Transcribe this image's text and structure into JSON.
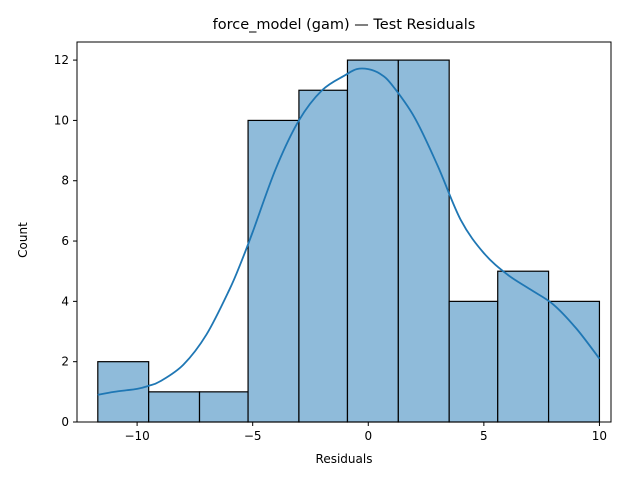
{
  "chart_data": {
    "type": "histogram",
    "title": "force_model (gam) — Test Residuals",
    "xlabel": "Residuals",
    "ylabel": "Count",
    "xlim": [
      -12.6,
      10.5
    ],
    "ylim": [
      0,
      12.6
    ],
    "xticks": [
      -10,
      -5,
      0,
      5,
      10
    ],
    "xtick_labels": [
      "−10",
      "−5",
      "0",
      "5",
      "10"
    ],
    "yticks": [
      0,
      2,
      4,
      6,
      8,
      10,
      12
    ],
    "ytick_labels": [
      "0",
      "2",
      "4",
      "6",
      "8",
      "10",
      "12"
    ],
    "bins": [
      {
        "x0": -11.7,
        "x1": -9.5,
        "count": 2
      },
      {
        "x0": -9.5,
        "x1": -7.3,
        "count": 1
      },
      {
        "x0": -7.3,
        "x1": -5.2,
        "count": 1
      },
      {
        "x0": -5.2,
        "x1": -3.0,
        "count": 10
      },
      {
        "x0": -3.0,
        "x1": -0.9,
        "count": 11
      },
      {
        "x0": -0.9,
        "x1": 1.3,
        "count": 12
      },
      {
        "x0": 1.3,
        "x1": 3.5,
        "count": 12
      },
      {
        "x0": 3.5,
        "x1": 5.6,
        "count": 4
      },
      {
        "x0": 5.6,
        "x1": 7.8,
        "count": 5
      },
      {
        "x0": 7.8,
        "x1": 10.0,
        "count": 4
      }
    ],
    "kde": {
      "x": [
        -11.7,
        -11.0,
        -10.0,
        -9.5,
        -9.0,
        -8.0,
        -7.0,
        -6.0,
        -5.5,
        -5.0,
        -4.0,
        -3.0,
        -2.0,
        -1.0,
        -0.5,
        0.0,
        0.5,
        1.0,
        2.0,
        3.0,
        4.0,
        5.0,
        6.0,
        7.0,
        8.0,
        9.0,
        10.0
      ],
      "y": [
        0.9,
        1.0,
        1.1,
        1.2,
        1.35,
        1.9,
        2.9,
        4.4,
        5.3,
        6.3,
        8.4,
        10.0,
        11.0,
        11.5,
        11.7,
        11.7,
        11.55,
        11.2,
        10.1,
        8.5,
        6.7,
        5.6,
        4.9,
        4.4,
        3.9,
        3.1,
        2.1
      ]
    },
    "colors": {
      "bar_fill": "#8fbbda",
      "bar_edge": "#000000",
      "kde_line": "#1f77b4"
    },
    "grid": false
  }
}
